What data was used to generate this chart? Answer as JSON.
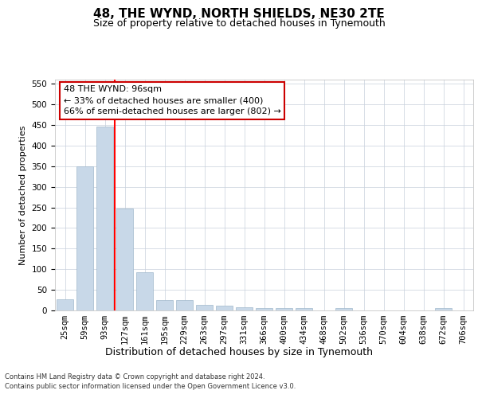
{
  "title": "48, THE WYND, NORTH SHIELDS, NE30 2TE",
  "subtitle": "Size of property relative to detached houses in Tynemouth",
  "xlabel": "Distribution of detached houses by size in Tynemouth",
  "ylabel": "Number of detached properties",
  "bar_labels": [
    "25sqm",
    "59sqm",
    "93sqm",
    "127sqm",
    "161sqm",
    "195sqm",
    "229sqm",
    "263sqm",
    "297sqm",
    "331sqm",
    "366sqm",
    "400sqm",
    "434sqm",
    "468sqm",
    "502sqm",
    "536sqm",
    "570sqm",
    "604sqm",
    "638sqm",
    "672sqm",
    "706sqm"
  ],
  "bar_values": [
    27,
    350,
    447,
    247,
    92,
    25,
    25,
    14,
    11,
    8,
    6,
    5,
    5,
    0,
    5,
    0,
    0,
    0,
    0,
    5,
    0
  ],
  "bar_color": "#c8d8e8",
  "bar_edge_color": "#a0b8cc",
  "bar_width": 0.85,
  "ylim": [
    0,
    560
  ],
  "yticks": [
    0,
    50,
    100,
    150,
    200,
    250,
    300,
    350,
    400,
    450,
    500,
    550
  ],
  "red_line_x": 2.5,
  "annotation_text": "48 THE WYND: 96sqm\n← 33% of detached houses are smaller (400)\n66% of semi-detached houses are larger (802) →",
  "annotation_box_color": "#ffffff",
  "annotation_box_edge": "#cc0000",
  "footer_line1": "Contains HM Land Registry data © Crown copyright and database right 2024.",
  "footer_line2": "Contains public sector information licensed under the Open Government Licence v3.0.",
  "background_color": "#ffffff",
  "grid_color": "#c8d0dc",
  "title_fontsize": 11,
  "subtitle_fontsize": 9,
  "tick_fontsize": 7.5,
  "ylabel_fontsize": 8,
  "xlabel_fontsize": 9,
  "footer_fontsize": 6,
  "annot_fontsize": 8
}
